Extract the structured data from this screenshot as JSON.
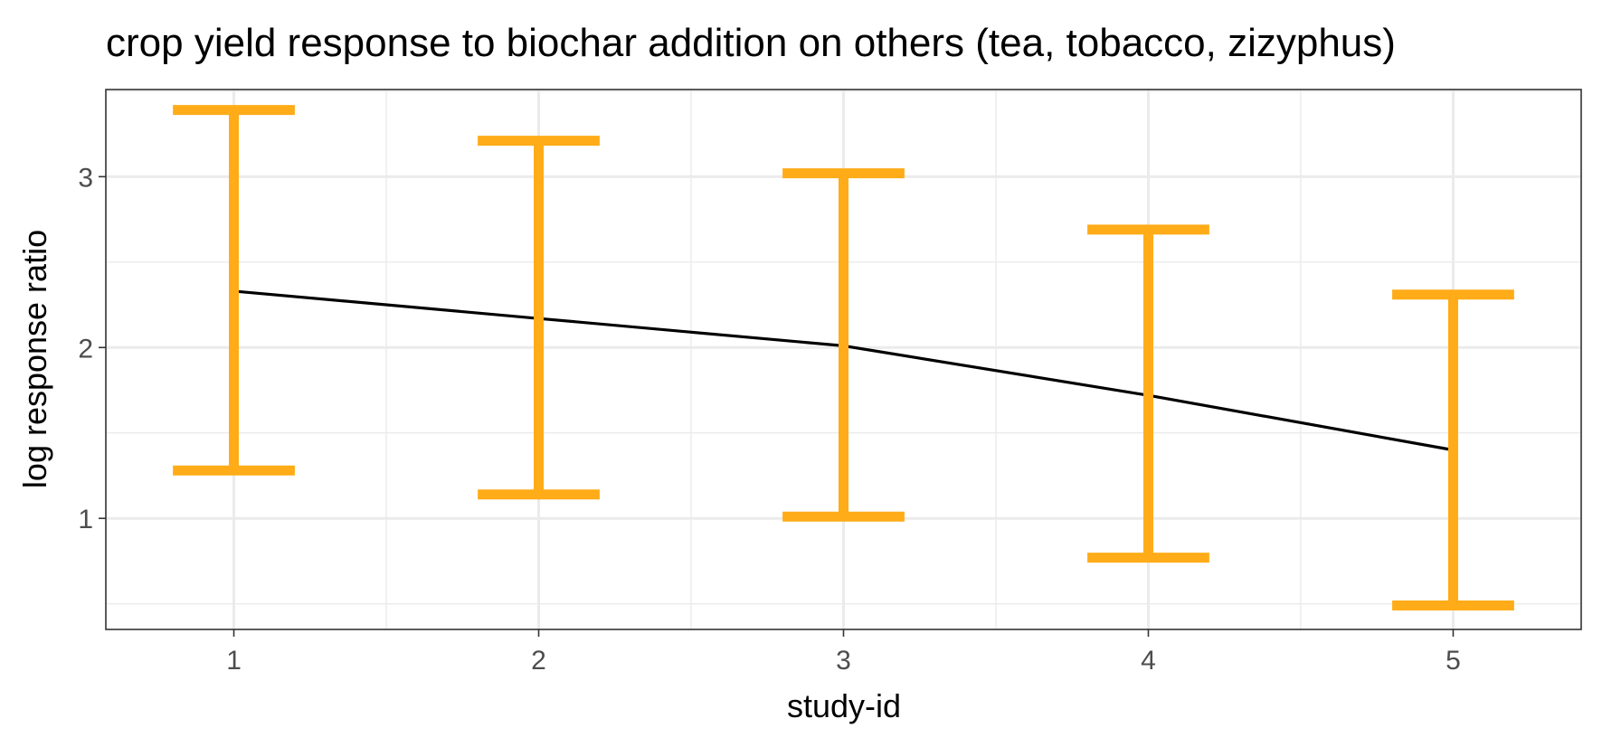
{
  "chart_data": {
    "type": "line",
    "title": "crop yield response to biochar addition on others (tea, tobacco, zizyphus)",
    "xlabel": "study-id",
    "ylabel": "log response ratio",
    "x": [
      1,
      2,
      3,
      4,
      5
    ],
    "x_tick_labels": [
      "1",
      "2",
      "3",
      "4",
      "5"
    ],
    "y_ticks": [
      1,
      2,
      3
    ],
    "y_tick_labels": [
      "1",
      "2",
      "3"
    ],
    "xlim": [
      0.58,
      5.42
    ],
    "ylim": [
      0.35,
      3.51
    ],
    "grid": true,
    "legend": "none",
    "series": [
      {
        "type": "line",
        "color": "#000000",
        "values": [
          2.33,
          2.17,
          2.01,
          1.72,
          1.4
        ]
      },
      {
        "type": "errorbar",
        "color": "#FFAC18",
        "lower": [
          1.28,
          1.14,
          1.01,
          0.77,
          0.49
        ],
        "upper": [
          3.39,
          3.21,
          3.02,
          2.69,
          2.31
        ]
      }
    ]
  }
}
